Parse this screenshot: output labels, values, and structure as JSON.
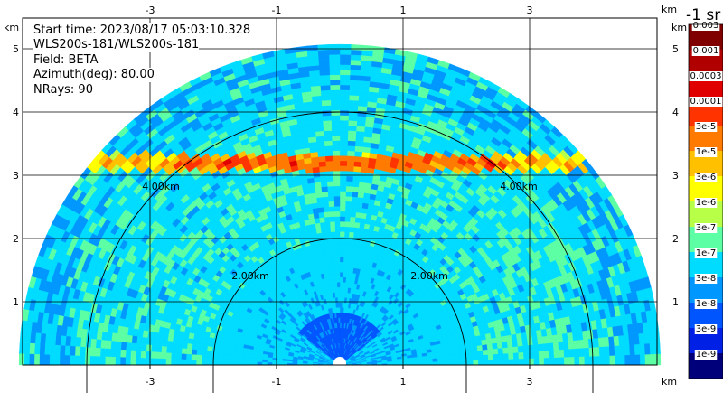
{
  "info": {
    "start_time": "Start time: 2023/08/17 05:03:10.328",
    "station": "WLS200s-181/WLS200s-181",
    "field": "Field: BETA",
    "azimuth": "Azimuth(deg): 80.00",
    "nrays": "NRays: 90"
  },
  "chart_data": {
    "type": "heatmap",
    "subtype": "lidar RHI scan (polar, upper half-plane)",
    "field": "BETA",
    "axis_unit": "km",
    "x_ticks": [
      "-3",
      "-1",
      "1",
      "3"
    ],
    "y_ticks": [
      "1",
      "2",
      "3",
      "4",
      "5"
    ],
    "xlim": [
      -5.0,
      5.0
    ],
    "ylim": [
      0,
      5.5
    ],
    "max_range_km": 5.0,
    "range_rings": [
      {
        "radius_km": 2.0,
        "label": "2.00km"
      },
      {
        "radius_km": 4.0,
        "label": "4.00km"
      }
    ],
    "features": {
      "cloud_layer_height_km": 3.2,
      "cloud_layer_extent_km": [
        -4.0,
        3.9
      ]
    },
    "colorbar": {
      "unit": "-1 sr",
      "labels": [
        "0.003",
        "0.001",
        "0.0003",
        "0.0001",
        "3e-5",
        "1e-5",
        "3e-6",
        "1e-6",
        "3e-7",
        "1e-7",
        "3e-8",
        "1e-8",
        "3e-9",
        "1e-9"
      ],
      "colors": [
        "#800000",
        "#b00000",
        "#e00000",
        "#ff3300",
        "#ff7a00",
        "#ffc000",
        "#ffff00",
        "#b8ff48",
        "#5cffa3",
        "#00dcff",
        "#0097ff",
        "#0055ff",
        "#0020e6",
        "#00007a"
      ]
    },
    "grid": true
  }
}
